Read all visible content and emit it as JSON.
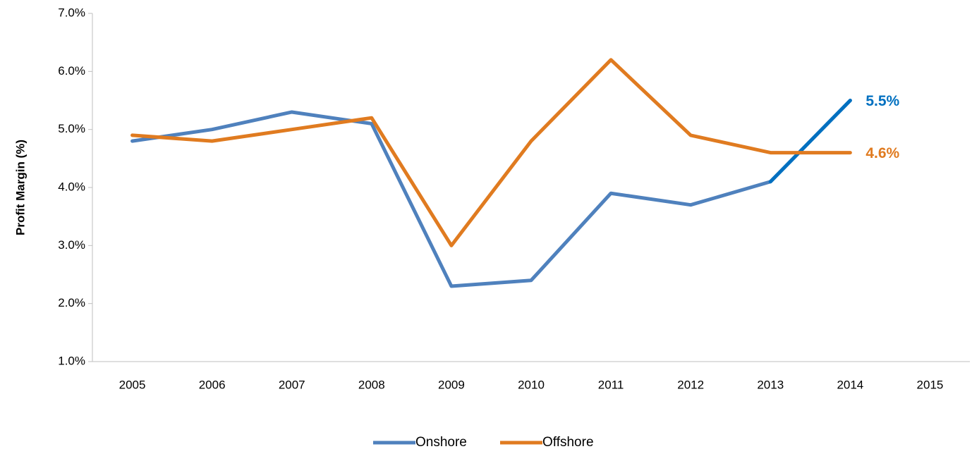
{
  "chart_data": {
    "type": "line",
    "y_label": "Profit Margin (%)",
    "categories": [
      "2005",
      "2006",
      "2007",
      "2008",
      "2009",
      "2010",
      "2011",
      "2012",
      "2013",
      "2014",
      "2015"
    ],
    "series": [
      {
        "name": "Onshore",
        "color": "#4f81bd",
        "highlight_color": "#0070c0",
        "values": [
          4.8,
          5.0,
          5.3,
          5.1,
          2.3,
          2.4,
          3.9,
          3.7,
          4.1,
          5.5,
          null
        ],
        "value_labels": [
          null,
          null,
          null,
          null,
          null,
          null,
          null,
          null,
          null,
          "5.5%",
          null
        ]
      },
      {
        "name": "Offshore",
        "color": "#e07b20",
        "highlight_color": "#e07b20",
        "values": [
          4.9,
          4.8,
          5.0,
          5.2,
          3.0,
          4.8,
          6.2,
          4.9,
          4.6,
          4.6,
          null
        ],
        "value_labels": [
          null,
          null,
          null,
          null,
          null,
          null,
          null,
          null,
          null,
          "4.6%",
          null
        ]
      }
    ],
    "ylim": [
      1.0,
      7.0
    ],
    "yticks": [
      {
        "value": 1.0,
        "label": "1.0%"
      },
      {
        "value": 2.0,
        "label": "2.0%"
      },
      {
        "value": 3.0,
        "label": "3.0%"
      },
      {
        "value": 4.0,
        "label": "4.0%"
      },
      {
        "value": 5.0,
        "label": "5.0%"
      },
      {
        "value": 6.0,
        "label": "6.0%"
      },
      {
        "value": 7.0,
        "label": "7.0%"
      }
    ],
    "grid": false,
    "legend": "bottom"
  }
}
